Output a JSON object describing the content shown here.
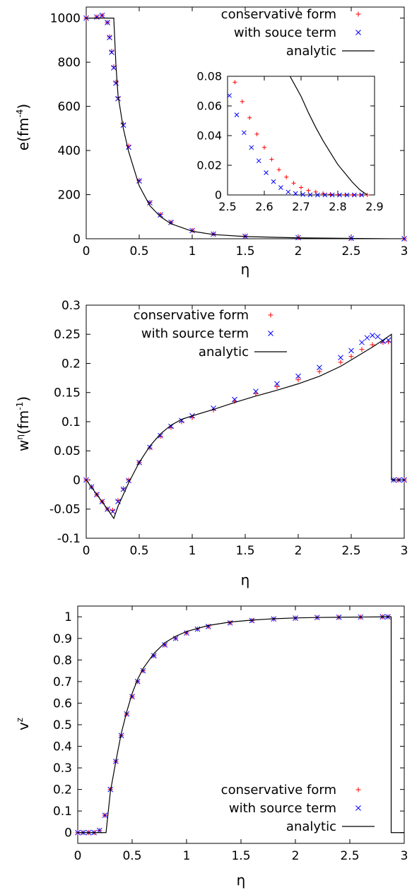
{
  "chart_data": [
    {
      "type": "scatter",
      "xlabel": "η",
      "ylabel": "e(fm-4)",
      "ylabel_parts": {
        "base": "e(fm",
        "sup": "-4",
        "close": ")"
      },
      "xlim": [
        0,
        3
      ],
      "ylim": [
        0,
        1050
      ],
      "xticks": [
        "0",
        "0.5",
        "1",
        "1.5",
        "2",
        "2.5",
        "3"
      ],
      "yticks": [
        "0",
        "200",
        "400",
        "600",
        "800",
        "1000"
      ],
      "legend_position": "top-right",
      "series": [
        {
          "name": "conservative form",
          "marker": "plus",
          "color": "#ff0000",
          "x": [
            0,
            0.1,
            0.15,
            0.2,
            0.22,
            0.24,
            0.26,
            0.28,
            0.3,
            0.35,
            0.4,
            0.5,
            0.6,
            0.7,
            0.8,
            1.0,
            1.2,
            1.5,
            2.0,
            2.5,
            3.0
          ],
          "y": [
            1000,
            1005,
            1012,
            980,
            915,
            850,
            780,
            710,
            640,
            520,
            420,
            265,
            165,
            110,
            75,
            38,
            22,
            12,
            5,
            2,
            0
          ]
        },
        {
          "name": "with souce term",
          "marker": "x",
          "color": "#0000ff",
          "x": [
            0,
            0.1,
            0.15,
            0.2,
            0.22,
            0.24,
            0.26,
            0.28,
            0.3,
            0.35,
            0.4,
            0.5,
            0.6,
            0.7,
            0.8,
            1.0,
            1.2,
            1.5,
            2.0,
            2.5,
            3.0
          ],
          "y": [
            1000,
            1005,
            1012,
            980,
            912,
            845,
            775,
            705,
            635,
            515,
            415,
            262,
            163,
            108,
            74,
            37,
            21,
            11,
            5,
            2,
            0
          ]
        },
        {
          "name": "analytic",
          "marker": "line",
          "color": "#000000",
          "x": [
            0,
            0.26,
            0.28,
            0.3,
            0.35,
            0.4,
            0.5,
            0.6,
            0.7,
            0.8,
            1.0,
            1.2,
            1.5,
            2.0,
            2.5,
            2.88,
            3.0
          ],
          "y": [
            1000,
            1000,
            790,
            650,
            500,
            395,
            240,
            150,
            100,
            68,
            34,
            19,
            10,
            4,
            1.5,
            0,
            0
          ]
        }
      ],
      "inset": {
        "xlim": [
          2.5,
          2.9
        ],
        "ylim": [
          0,
          0.08
        ],
        "xticks": [
          "2.5",
          "2.6",
          "2.7",
          "2.8",
          "2.9"
        ],
        "yticks": [
          "0",
          "0.02",
          "0.04",
          "0.06",
          "0.08"
        ],
        "series": [
          {
            "name": "conservative form",
            "marker": "plus",
            "color": "#ff0000",
            "x": [
              2.52,
              2.54,
              2.56,
              2.58,
              2.6,
              2.62,
              2.64,
              2.66,
              2.68,
              2.7,
              2.72,
              2.74,
              2.76,
              2.78,
              2.8,
              2.82,
              2.84,
              2.86,
              2.88
            ],
            "y": [
              0.076,
              0.063,
              0.052,
              0.041,
              0.032,
              0.024,
              0.017,
              0.012,
              0.008,
              0.005,
              0.003,
              0.002,
              0.001,
              0.0005,
              0.0002,
              0.0001,
              0.0,
              0.0,
              0.0
            ]
          },
          {
            "name": "with souce term",
            "marker": "x",
            "color": "#0000ff",
            "x": [
              2.505,
              2.525,
              2.545,
              2.565,
              2.585,
              2.605,
              2.625,
              2.645,
              2.665,
              2.685,
              2.705,
              2.725,
              2.745,
              2.765,
              2.785,
              2.805,
              2.825,
              2.845,
              2.865
            ],
            "y": [
              0.067,
              0.054,
              0.042,
              0.032,
              0.023,
              0.015,
              0.009,
              0.005,
              0.002,
              0.001,
              0.0003,
              0.0001,
              0.0,
              0.0,
              0.0,
              0.0,
              0.0,
              0.0,
              0.0
            ]
          },
          {
            "name": "analytic",
            "marker": "line",
            "color": "#000000",
            "x": [
              2.67,
              2.7,
              2.72,
              2.74,
              2.76,
              2.78,
              2.8,
              2.82,
              2.84,
              2.86,
              2.88
            ],
            "y": [
              0.08,
              0.0665,
              0.0555,
              0.0455,
              0.0365,
              0.0285,
              0.0205,
              0.0145,
              0.0085,
              0.0035,
              0.0
            ]
          }
        ]
      }
    },
    {
      "type": "scatter",
      "xlabel": "η",
      "ylabel": "wη(fm-1)",
      "ylabel_parts": {
        "base": "w",
        "sup1": "η",
        "mid": "(fm",
        "sup": "-1",
        "close": ")"
      },
      "xlim": [
        0,
        3
      ],
      "ylim": [
        -0.1,
        0.3
      ],
      "xticks": [
        "0",
        "0.5",
        "1",
        "1.5",
        "2",
        "2.5",
        "3"
      ],
      "yticks": [
        "-0.1",
        "-0.05",
        "0",
        "0.05",
        "0.1",
        "0.15",
        "0.2",
        "0.25",
        "0.3"
      ],
      "legend_position": "top-left",
      "series": [
        {
          "name": "conservative form",
          "marker": "plus",
          "color": "#ff0000",
          "x": [
            0,
            0.05,
            0.1,
            0.15,
            0.2,
            0.25,
            0.3,
            0.35,
            0.4,
            0.5,
            0.6,
            0.7,
            0.8,
            0.9,
            1.0,
            1.2,
            1.4,
            1.6,
            1.8,
            2.0,
            2.2,
            2.4,
            2.5,
            2.6,
            2.7,
            2.8,
            2.85,
            2.9,
            2.95,
            3.0
          ],
          "y": [
            0,
            -0.012,
            -0.025,
            -0.037,
            -0.05,
            -0.052,
            -0.035,
            -0.015,
            0.0,
            0.03,
            0.055,
            0.075,
            0.09,
            0.1,
            0.107,
            0.12,
            0.135,
            0.148,
            0.16,
            0.172,
            0.186,
            0.202,
            0.212,
            0.224,
            0.232,
            0.236,
            0.237,
            0,
            0,
            0
          ]
        },
        {
          "name": "with source term",
          "marker": "x",
          "color": "#0000ff",
          "x": [
            0,
            0.05,
            0.1,
            0.15,
            0.2,
            0.25,
            0.3,
            0.35,
            0.4,
            0.5,
            0.6,
            0.7,
            0.8,
            0.9,
            1.0,
            1.2,
            1.4,
            1.6,
            1.8,
            2.0,
            2.2,
            2.4,
            2.5,
            2.6,
            2.65,
            2.7,
            2.75,
            2.8,
            2.85,
            2.9,
            2.95,
            3.0
          ],
          "y": [
            0,
            -0.012,
            -0.025,
            -0.037,
            -0.05,
            -0.054,
            -0.037,
            -0.016,
            -0.001,
            0.03,
            0.056,
            0.076,
            0.092,
            0.102,
            0.11,
            0.123,
            0.138,
            0.152,
            0.165,
            0.178,
            0.193,
            0.21,
            0.222,
            0.236,
            0.244,
            0.248,
            0.246,
            0.238,
            0.24,
            0,
            0,
            0
          ]
        },
        {
          "name": "analytic",
          "marker": "line",
          "color": "#000000",
          "x": [
            0,
            0.1,
            0.2,
            0.26,
            0.3,
            0.4,
            0.5,
            0.6,
            0.7,
            0.8,
            0.9,
            1.0,
            1.2,
            1.4,
            1.6,
            1.8,
            2.0,
            2.2,
            2.4,
            2.6,
            2.7,
            2.8,
            2.88,
            2.88,
            3.0
          ],
          "y": [
            0,
            -0.025,
            -0.05,
            -0.066,
            -0.045,
            -0.005,
            0.03,
            0.058,
            0.079,
            0.094,
            0.104,
            0.11,
            0.121,
            0.133,
            0.144,
            0.154,
            0.165,
            0.178,
            0.195,
            0.217,
            0.228,
            0.24,
            0.25,
            0,
            0
          ]
        }
      ]
    },
    {
      "type": "scatter",
      "xlabel": "η",
      "ylabel": "vz",
      "ylabel_parts": {
        "base": "v",
        "sup": "z"
      },
      "xlim": [
        0,
        3
      ],
      "ylim": [
        -0.05,
        1.05
      ],
      "xticks": [
        "0",
        "0.5",
        "1",
        "1.5",
        "2",
        "2.5",
        "3"
      ],
      "yticks": [
        "0",
        "0.1",
        "0.2",
        "0.3",
        "0.4",
        "0.5",
        "0.6",
        "0.7",
        "0.8",
        "0.9",
        "1"
      ],
      "legend_position": "bottom-right",
      "series": [
        {
          "name": "conservative form",
          "marker": "plus",
          "color": "#ff0000",
          "x": [
            0,
            0.05,
            0.1,
            0.15,
            0.2,
            0.25,
            0.3,
            0.35,
            0.4,
            0.45,
            0.5,
            0.55,
            0.6,
            0.7,
            0.8,
            0.9,
            1.0,
            1.1,
            1.2,
            1.4,
            1.6,
            1.8,
            2.0,
            2.2,
            2.4,
            2.6,
            2.8,
            2.85
          ],
          "y": [
            0,
            0,
            0,
            0,
            0.01,
            0.08,
            0.2,
            0.33,
            0.45,
            0.55,
            0.63,
            0.7,
            0.75,
            0.82,
            0.87,
            0.9,
            0.925,
            0.943,
            0.955,
            0.972,
            0.983,
            0.99,
            0.994,
            0.997,
            0.998,
            0.999,
            1.0,
            1.0
          ]
        },
        {
          "name": "with source term",
          "marker": "x",
          "color": "#0000ff",
          "x": [
            0,
            0.05,
            0.1,
            0.15,
            0.2,
            0.25,
            0.3,
            0.35,
            0.4,
            0.45,
            0.5,
            0.55,
            0.6,
            0.7,
            0.8,
            0.9,
            1.0,
            1.1,
            1.2,
            1.4,
            1.6,
            1.8,
            2.0,
            2.2,
            2.4,
            2.6,
            2.8,
            2.85
          ],
          "y": [
            0,
            0,
            0,
            0,
            0.01,
            0.08,
            0.2,
            0.33,
            0.45,
            0.55,
            0.63,
            0.7,
            0.75,
            0.82,
            0.87,
            0.9,
            0.925,
            0.943,
            0.955,
            0.972,
            0.983,
            0.99,
            0.994,
            0.997,
            0.998,
            0.999,
            1.0,
            1.0
          ]
        },
        {
          "name": "analytic",
          "marker": "line",
          "color": "#000000",
          "x": [
            0,
            0.26,
            0.3,
            0.35,
            0.4,
            0.45,
            0.5,
            0.55,
            0.6,
            0.7,
            0.8,
            0.9,
            1.0,
            1.2,
            1.4,
            1.6,
            1.8,
            2.0,
            2.2,
            2.4,
            2.6,
            2.88,
            2.88,
            3.0
          ],
          "y": [
            0,
            0,
            0.19,
            0.33,
            0.46,
            0.56,
            0.645,
            0.71,
            0.76,
            0.83,
            0.88,
            0.91,
            0.932,
            0.96,
            0.976,
            0.985,
            0.991,
            0.995,
            0.997,
            0.998,
            0.999,
            1.0,
            0,
            0
          ]
        }
      ]
    }
  ]
}
